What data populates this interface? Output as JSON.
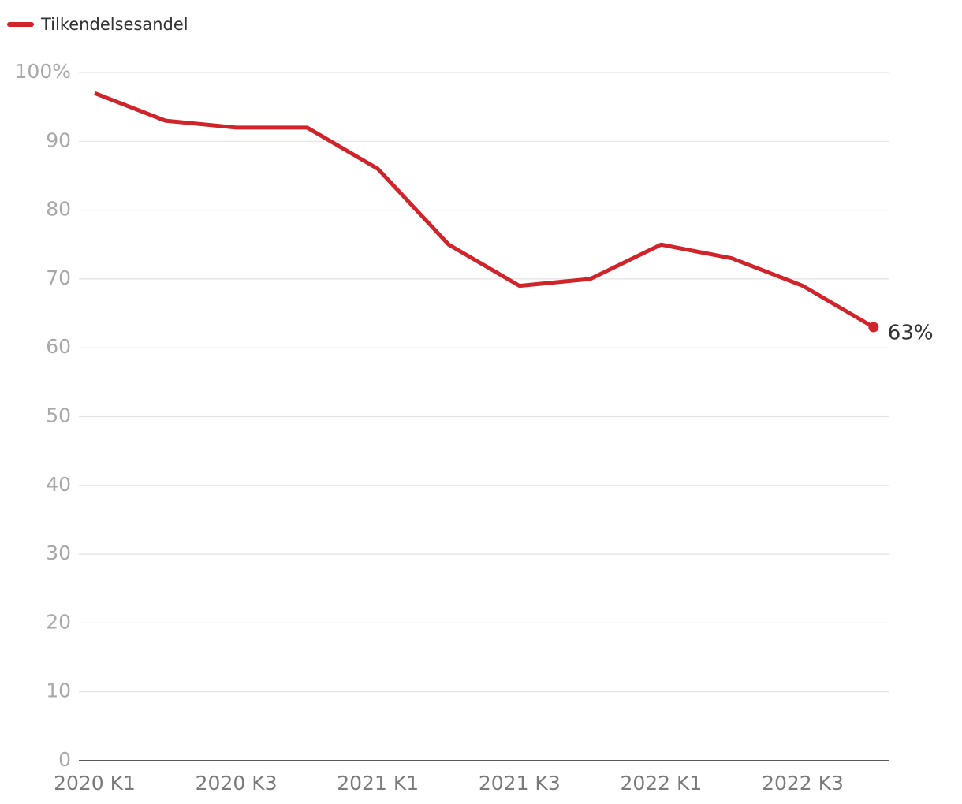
{
  "chart_data": {
    "type": "line",
    "categories": [
      "2020 K1",
      null,
      "2020 K3",
      null,
      "2021 K1",
      null,
      "2021 K3",
      null,
      "2022 K1",
      null,
      "2022 K3",
      null
    ],
    "series": [
      {
        "name": "Tilkendelsesandel",
        "color": "#d0232a",
        "values": [
          97,
          93,
          92,
          92,
          86,
          75,
          69,
          70,
          75,
          73,
          69,
          63
        ],
        "value_labels": [
          null,
          null,
          null,
          null,
          null,
          null,
          null,
          null,
          null,
          null,
          null,
          "63%"
        ]
      }
    ],
    "ylim": [
      0,
      100
    ],
    "yticks": [
      0,
      10,
      20,
      30,
      40,
      50,
      60,
      70,
      80,
      90,
      {
        "value": 100,
        "label": "100%"
      }
    ],
    "grid": true,
    "legend": "top-left"
  }
}
